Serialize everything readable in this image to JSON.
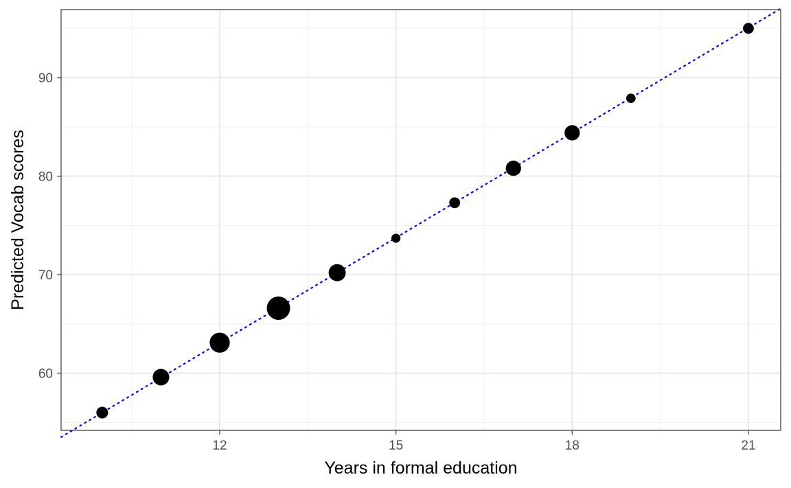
{
  "colors": {
    "point": "#000000",
    "reference_line": "#0000ff",
    "grid_major": "#ebebeb",
    "grid_minor": "#f2f2f2",
    "panel_border": "#333333",
    "tick_text": "#4d4d4d"
  },
  "chart_data": {
    "type": "scatter",
    "title": "",
    "xlabel": "Years in formal education",
    "ylabel": "Predicted Vocab scores",
    "xlim": [
      9.3,
      21.55
    ],
    "ylim": [
      54.2,
      96.9
    ],
    "x_ticks": [
      12,
      15,
      18,
      21
    ],
    "x_tick_labels": [
      "12",
      "15",
      "18",
      "21"
    ],
    "x_minor_ticks": [
      10.5,
      13.5,
      16.5,
      19.5
    ],
    "y_ticks": [
      60,
      70,
      80,
      90
    ],
    "y_tick_labels": [
      "60",
      "70",
      "80",
      "90"
    ],
    "y_minor_ticks": [
      55,
      65,
      75,
      85,
      95
    ],
    "grid": true,
    "legend": "none",
    "points": [
      {
        "x": 10,
        "y": 56.0,
        "relative_size": 0.35
      },
      {
        "x": 11,
        "y": 59.6,
        "relative_size": 0.62
      },
      {
        "x": 12,
        "y": 63.1,
        "relative_size": 0.82
      },
      {
        "x": 13,
        "y": 66.6,
        "relative_size": 1.0
      },
      {
        "x": 14,
        "y": 70.2,
        "relative_size": 0.65
      },
      {
        "x": 15,
        "y": 73.7,
        "relative_size": 0.2
      },
      {
        "x": 16,
        "y": 77.3,
        "relative_size": 0.3
      },
      {
        "x": 17,
        "y": 80.8,
        "relative_size": 0.55
      },
      {
        "x": 18,
        "y": 84.4,
        "relative_size": 0.55
      },
      {
        "x": 19,
        "y": 87.9,
        "relative_size": 0.22
      },
      {
        "x": 21,
        "y": 95.0,
        "relative_size": 0.3
      }
    ],
    "reference_line": {
      "style": "dotted",
      "slope": 3.55,
      "intercept": 20.5
    }
  }
}
